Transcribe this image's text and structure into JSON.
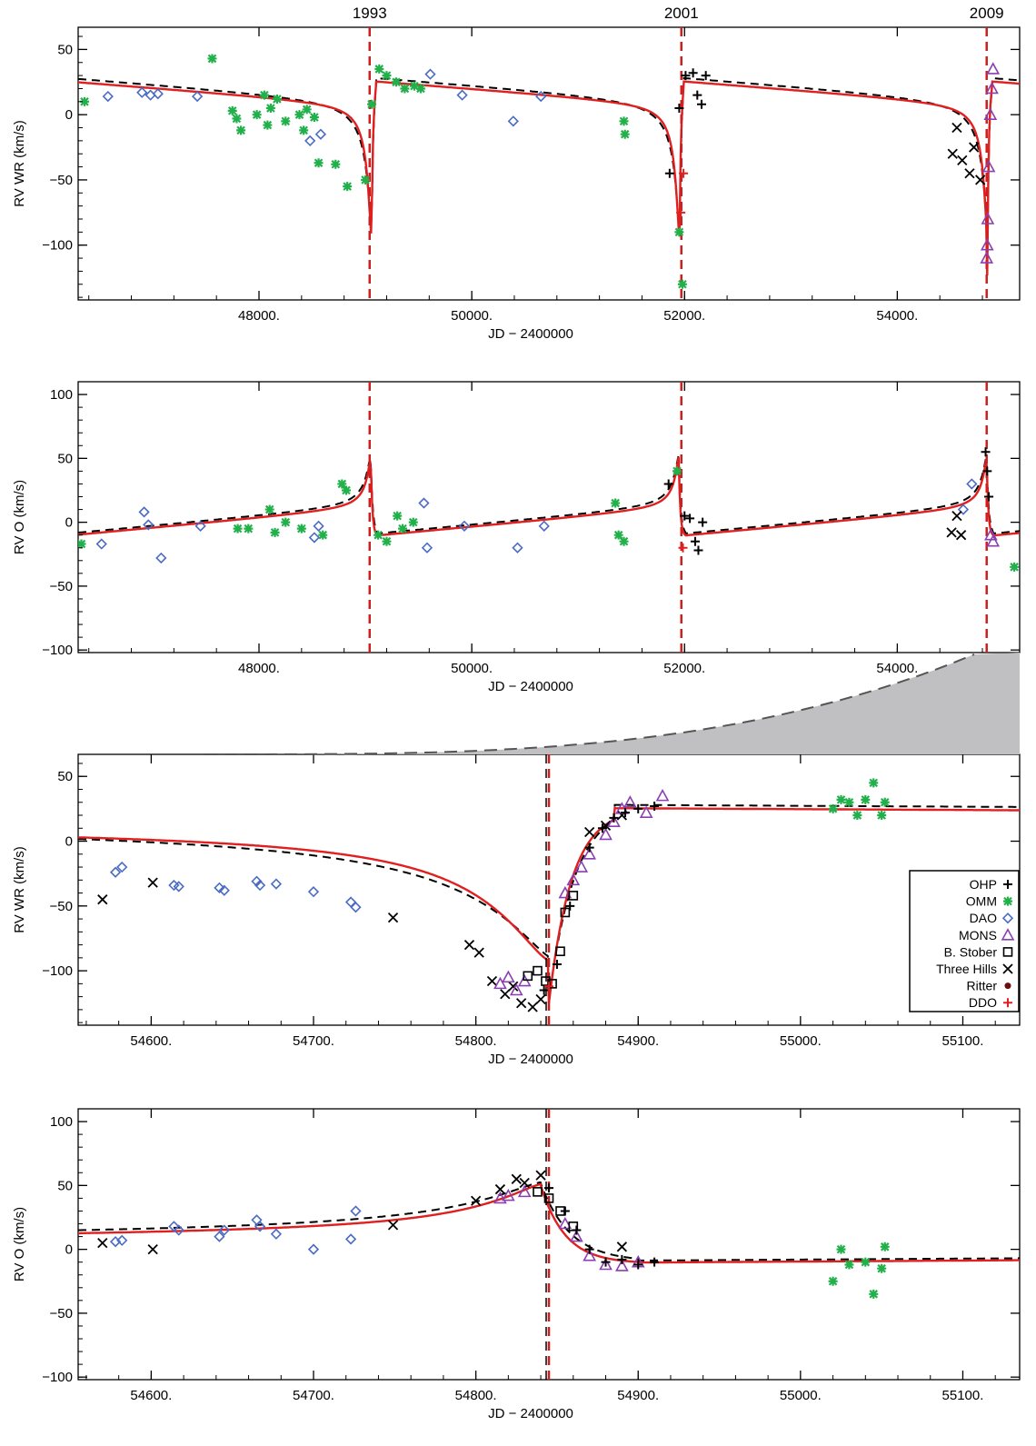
{
  "chart_data": [
    {
      "type": "scatter",
      "panel_id": "p1",
      "ylabel": "RV WR (km/s)",
      "xlabel": "JD - 2400000",
      "xlim": [
        46300,
        55150
      ],
      "ylim": [
        -142,
        67
      ],
      "xticks": [
        48000,
        50000,
        52000,
        54000
      ],
      "xtick_labels": [
        "48000.",
        "50000.",
        "52000.",
        "54000."
      ],
      "yticks": [
        50,
        0,
        -50,
        -100
      ],
      "ytick_labels": [
        "50",
        "0",
        "-50",
        "-100"
      ],
      "periastron_lines": [
        49040,
        51970,
        54840
      ],
      "year_labels": [
        "1993",
        "2001",
        "2009"
      ],
      "series": [
        {
          "name": "OMM",
          "marker": "asterisk",
          "color": "#22b04b",
          "x": [
            46360,
            47560,
            47750,
            47790,
            47830,
            47980,
            48050,
            48080,
            48110,
            48170,
            48250,
            48380,
            48420,
            48450,
            48520,
            48560,
            48720,
            48830,
            49000,
            49060,
            49130,
            49200,
            49290,
            49370,
            49460,
            49520,
            51430,
            51440,
            51950,
            51980
          ],
          "y": [
            10,
            43,
            3,
            -3,
            -12,
            0,
            15,
            -8,
            5,
            12,
            -5,
            0,
            -12,
            4,
            -2,
            -37,
            -38,
            -55,
            -50,
            8,
            35,
            30,
            25,
            20,
            22,
            20,
            -5,
            -15,
            -90,
            -130
          ]
        },
        {
          "name": "DAO",
          "marker": "diamond",
          "color": "#4a6bc4",
          "x": [
            46580,
            46900,
            46980,
            47050,
            47420,
            48480,
            48580,
            49610,
            49910,
            50390,
            50650
          ],
          "y": [
            14,
            17,
            15,
            16,
            14,
            -20,
            -15,
            31,
            15,
            -5,
            14
          ]
        },
        {
          "name": "OHP",
          "marker": "plus",
          "color": "#000000",
          "x": [
            51950,
            52010,
            52080,
            52120,
            52160,
            52200,
            51860
          ],
          "y": [
            5,
            30,
            32,
            15,
            8,
            30,
            -45
          ]
        },
        {
          "name": "Three Hills",
          "marker": "x",
          "color": "#000000",
          "x": [
            54520,
            54560,
            54610,
            54680,
            54720,
            54780
          ],
          "y": [
            -30,
            -10,
            -35,
            -45,
            -25,
            -50
          ]
        },
        {
          "name": "MONS",
          "marker": "triangle",
          "color": "#8a3fb0",
          "x": [
            54840,
            54845,
            54850,
            54860,
            54875,
            54890,
            54900
          ],
          "y": [
            -110,
            -100,
            -80,
            -40,
            0,
            20,
            35
          ]
        },
        {
          "name": "DDO",
          "marker": "plus",
          "color": "#e02020",
          "x": [
            51965,
            51990
          ],
          "y": [
            -75,
            -45
          ]
        }
      ]
    },
    {
      "type": "scatter",
      "panel_id": "p2",
      "ylabel": "RV O (km/s)",
      "xlabel": "JD - 2400000",
      "xlim": [
        46300,
        55150
      ],
      "ylim": [
        -102,
        110
      ],
      "xticks": [
        48000,
        50000,
        52000,
        54000
      ],
      "xtick_labels": [
        "48000.",
        "50000.",
        "52000.",
        "54000."
      ],
      "yticks": [
        100,
        50,
        0,
        -50,
        -100
      ],
      "ytick_labels": [
        "100",
        "50",
        "0",
        "-50",
        "-100"
      ],
      "periastron_lines": [
        49040,
        51970,
        54840
      ],
      "series": [
        {
          "name": "OMM",
          "marker": "asterisk",
          "color": "#22b04b",
          "x": [
            46330,
            47800,
            47900,
            48100,
            48150,
            48250,
            48400,
            48600,
            48780,
            48820,
            49120,
            49200,
            49300,
            49350,
            49450,
            51350,
            51380,
            51430,
            51930,
            55100
          ],
          "y": [
            -17,
            -5,
            -5,
            10,
            -8,
            0,
            -5,
            -10,
            30,
            25,
            -10,
            -15,
            5,
            -5,
            0,
            15,
            -10,
            -15,
            40,
            -35
          ]
        },
        {
          "name": "DAO",
          "marker": "diamond",
          "color": "#4a6bc4",
          "x": [
            46520,
            46920,
            46960,
            47080,
            47450,
            48520,
            48560,
            49550,
            49580,
            49930,
            50430,
            50680,
            54620,
            54700
          ],
          "y": [
            -17,
            8,
            -2,
            -28,
            -3,
            -12,
            -3,
            15,
            -20,
            -3,
            -20,
            -3,
            10,
            30
          ]
        },
        {
          "name": "OHP",
          "marker": "plus",
          "color": "#000000",
          "x": [
            51850,
            52000,
            52050,
            52100,
            52130,
            52170,
            54830,
            54845,
            54860
          ],
          "y": [
            30,
            5,
            3,
            -15,
            -22,
            0,
            55,
            40,
            20
          ]
        },
        {
          "name": "Three Hills",
          "marker": "x",
          "color": "#000000",
          "x": [
            54510,
            54560,
            54600
          ],
          "y": [
            -8,
            5,
            -10
          ]
        },
        {
          "name": "DDO",
          "marker": "plus",
          "color": "#e02020",
          "x": [
            51985
          ],
          "y": [
            -20
          ]
        },
        {
          "name": "MONS",
          "marker": "triangle",
          "color": "#8a3fb0",
          "x": [
            54880,
            54900
          ],
          "y": [
            -10,
            -15
          ]
        }
      ]
    },
    {
      "type": "scatter",
      "panel_id": "p3",
      "ylabel": "RV WR (km/s)",
      "xlabel": "JD - 2400000",
      "xlim": [
        54555,
        55135
      ],
      "ylim": [
        -142,
        67
      ],
      "xticks": [
        54600,
        54700,
        54800,
        54900,
        55000,
        55100
      ],
      "xtick_labels": [
        "54600.",
        "54700.",
        "54800.",
        "54900.",
        "55000.",
        "55100."
      ],
      "yticks": [
        50,
        0,
        -50,
        -100
      ],
      "ytick_labels": [
        "50",
        "0",
        "-50",
        "-100"
      ],
      "periastron_lines": [
        54845
      ],
      "legend": [
        "OHP",
        "OMM",
        "DAO",
        "MONS",
        "B. Stober",
        "Three Hills",
        "Ritter",
        "DDO"
      ],
      "series": [
        {
          "name": "DAO",
          "marker": "diamond",
          "color": "#4a6bc4",
          "x": [
            54578,
            54582,
            54614,
            54617,
            54642,
            54645,
            54665,
            54667,
            54677,
            54700,
            54723,
            54726
          ],
          "y": [
            -24,
            -20,
            -34,
            -35,
            -36,
            -38,
            -31,
            -34,
            -33,
            -39,
            -47,
            -51
          ]
        },
        {
          "name": "Three Hills",
          "marker": "x",
          "color": "#000000",
          "x": [
            54570,
            54601,
            54749,
            54796,
            54802,
            54810,
            54818,
            54823,
            54828,
            54835,
            54840,
            54870,
            54880,
            54890
          ],
          "y": [
            -45,
            -32,
            -59,
            -80,
            -86,
            -108,
            -118,
            -112,
            -125,
            -128,
            -122,
            7,
            12,
            20
          ]
        },
        {
          "name": "MONS",
          "marker": "triangle",
          "color": "#8a3fb0",
          "x": [
            54815,
            54820,
            54825,
            54830,
            54855,
            54860,
            54865,
            54870,
            54880,
            54885,
            54890,
            54895,
            54905,
            54915
          ],
          "y": [
            -110,
            -105,
            -115,
            -108,
            -40,
            -30,
            -20,
            -10,
            5,
            15,
            25,
            30,
            22,
            35
          ]
        },
        {
          "name": "B. Stober",
          "marker": "square",
          "color": "#000000",
          "x": [
            54832,
            54838,
            54843,
            54847,
            54852,
            54855,
            54860
          ],
          "y": [
            -104,
            -100,
            -108,
            -110,
            -85,
            -55,
            -42
          ]
        },
        {
          "name": "OHP",
          "marker": "plus",
          "color": "#000000",
          "x": [
            54842,
            54850,
            54858,
            54870,
            54878,
            54885,
            54892,
            54900,
            54910
          ],
          "y": [
            -115,
            -95,
            -50,
            -5,
            10,
            18,
            22,
            25,
            27
          ]
        },
        {
          "name": "OMM",
          "marker": "asterisk",
          "color": "#22b04b",
          "x": [
            55020,
            55025,
            55030,
            55035,
            55040,
            55045,
            55050,
            55052
          ],
          "y": [
            25,
            32,
            30,
            20,
            32,
            45,
            20,
            30
          ]
        },
        {
          "name": "DDO",
          "marker": "plus",
          "color": "#e02020",
          "x": [
            54845
          ],
          "y": [
            -112
          ]
        }
      ]
    },
    {
      "type": "scatter",
      "panel_id": "p4",
      "ylabel": "RV O (km/s)",
      "xlabel": "JD - 2400000",
      "xlim": [
        54555,
        55135
      ],
      "ylim": [
        -102,
        110
      ],
      "xticks": [
        54600,
        54700,
        54800,
        54900,
        55000,
        55100
      ],
      "xtick_labels": [
        "54600.",
        "54700.",
        "54800.",
        "54900.",
        "55000.",
        "55100."
      ],
      "yticks": [
        100,
        50,
        0,
        -50,
        -100
      ],
      "ytick_labels": [
        "100",
        "50",
        "0",
        "-50",
        "-100"
      ],
      "periastron_lines": [
        54845
      ],
      "series": [
        {
          "name": "DAO",
          "marker": "diamond",
          "color": "#4a6bc4",
          "x": [
            54578,
            54582,
            54614,
            54617,
            54642,
            54645,
            54665,
            54667,
            54677,
            54700,
            54723,
            54726
          ],
          "y": [
            6,
            7,
            18,
            15,
            10,
            15,
            23,
            18,
            12,
            0,
            8,
            30
          ]
        },
        {
          "name": "Three Hills",
          "marker": "x",
          "color": "#000000",
          "x": [
            54570,
            54601,
            54749,
            54800,
            54815,
            54825,
            54830,
            54840,
            54890
          ],
          "y": [
            5,
            0,
            19,
            38,
            47,
            55,
            52,
            58,
            2
          ]
        },
        {
          "name": "MONS",
          "marker": "triangle",
          "color": "#8a3fb0",
          "x": [
            54815,
            54820,
            54830,
            54855,
            54862,
            54870,
            54880,
            54890,
            54900
          ],
          "y": [
            40,
            42,
            45,
            20,
            10,
            -5,
            -12,
            -13,
            -10
          ]
        },
        {
          "name": "B. Stober",
          "marker": "square",
          "color": "#000000",
          "x": [
            54838,
            54845,
            54852,
            54860
          ],
          "y": [
            45,
            40,
            30,
            18
          ]
        },
        {
          "name": "OHP",
          "marker": "plus",
          "color": "#000000",
          "x": [
            54845,
            54855,
            54862,
            54870,
            54880,
            54890,
            54900,
            54910
          ],
          "y": [
            48,
            30,
            15,
            0,
            -10,
            -8,
            -12,
            -10
          ]
        },
        {
          "name": "OMM",
          "marker": "asterisk",
          "color": "#22b04b",
          "x": [
            55020,
            55025,
            55030,
            55040,
            55045,
            55050,
            55052
          ],
          "y": [
            -25,
            0,
            -12,
            -10,
            -35,
            -15,
            2
          ]
        }
      ]
    }
  ],
  "legend_markers": {
    "OHP": {
      "marker": "plus",
      "color": "#000000"
    },
    "OMM": {
      "marker": "asterisk",
      "color": "#22b04b"
    },
    "DAO": {
      "marker": "diamond",
      "color": "#4a6bc4"
    },
    "MONS": {
      "marker": "triangle",
      "color": "#8a3fb0"
    },
    "B. Stober": {
      "marker": "square",
      "color": "#000000"
    },
    "Three Hills": {
      "marker": "x",
      "color": "#000000"
    },
    "Ritter": {
      "marker": "dot",
      "color": "#6a0f0f"
    },
    "DDO": {
      "marker": "plus",
      "color": "#e02020"
    }
  },
  "colors": {
    "model_solid": "#e02020",
    "model_dashed": "#000000",
    "periastron": "#cc2020",
    "zoom_fill": "#c0c0c2"
  }
}
